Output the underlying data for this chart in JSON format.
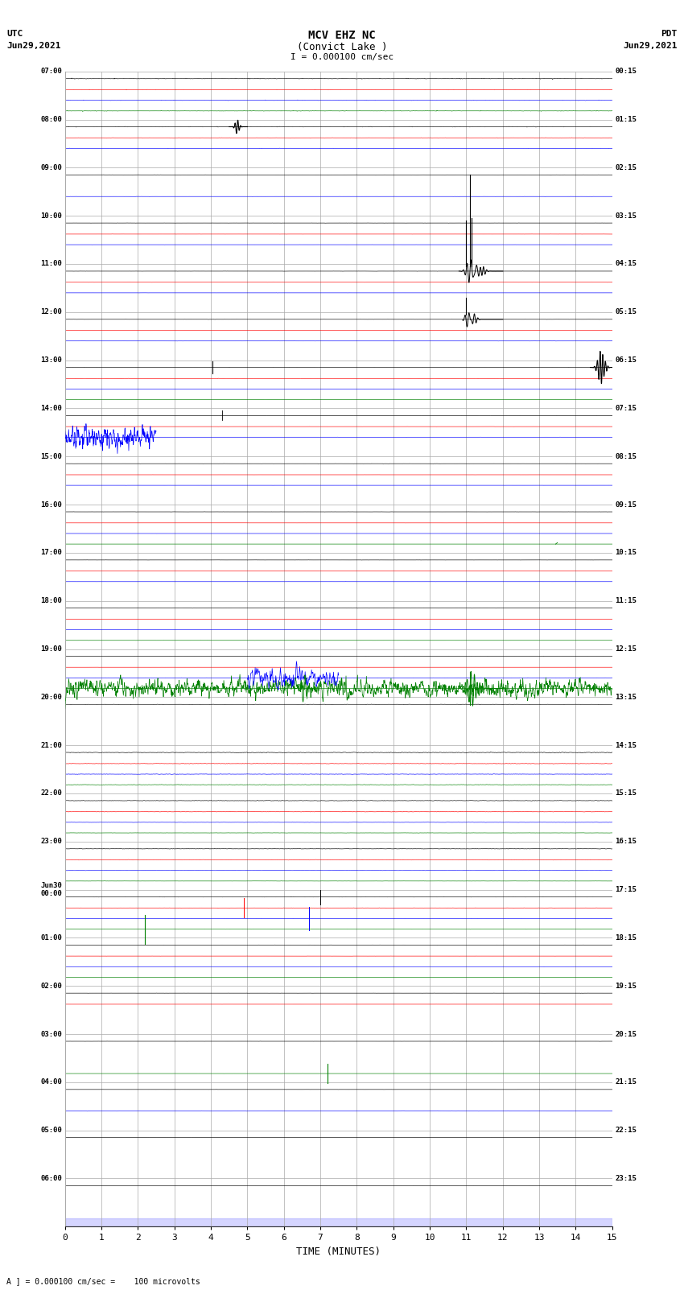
{
  "title_line1": "MCV EHZ NC",
  "title_line2": "(Convict Lake )",
  "title_line3": "I = 0.000100 cm/sec",
  "left_top_label1": "UTC",
  "left_top_label2": "Jun29,2021",
  "right_top_label1": "PDT",
  "right_top_label2": "Jun29,2021",
  "bottom_label": "TIME (MINUTES)",
  "bottom_note": "A ] = 0.000100 cm/sec =    100 microvolts",
  "xlim": [
    0,
    15
  ],
  "xticks": [
    0,
    1,
    2,
    3,
    4,
    5,
    6,
    7,
    8,
    9,
    10,
    11,
    12,
    13,
    14,
    15
  ],
  "num_rows": 24,
  "background_color": "#ffffff",
  "grid_color": "#aaaaaa",
  "fig_width": 8.5,
  "fig_height": 16.13,
  "left_times_utc": [
    "07:00",
    "08:00",
    "09:00",
    "10:00",
    "11:00",
    "12:00",
    "13:00",
    "14:00",
    "15:00",
    "16:00",
    "17:00",
    "18:00",
    "19:00",
    "20:00",
    "21:00",
    "22:00",
    "23:00",
    "Jun30\n00:00",
    "01:00",
    "02:00",
    "03:00",
    "04:00",
    "05:00",
    "06:00"
  ],
  "right_times_pdt": [
    "00:15",
    "01:15",
    "02:15",
    "03:15",
    "04:15",
    "05:15",
    "06:15",
    "07:15",
    "08:15",
    "09:15",
    "10:15",
    "11:15",
    "12:15",
    "13:15",
    "14:15",
    "15:15",
    "16:15",
    "17:15",
    "18:15",
    "19:15",
    "20:15",
    "21:15",
    "22:15",
    "23:15"
  ]
}
